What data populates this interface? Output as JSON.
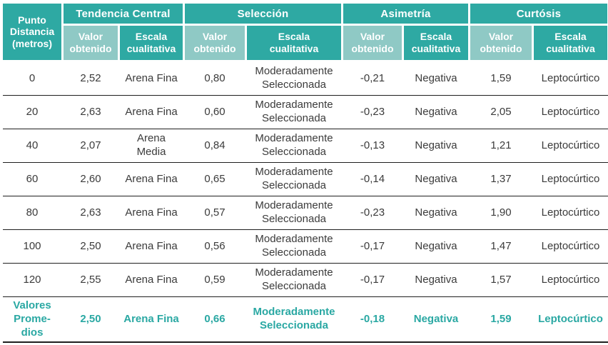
{
  "table": {
    "corner_header": "Punto\nDistancia\n(metros)",
    "groups": [
      {
        "label": "Tendencia Central",
        "sub": [
          "Valor\nobtenido",
          "Escala\ncualitativa"
        ]
      },
      {
        "label": "Selección",
        "sub": [
          "Valor\nobtenido",
          "Escala\ncualitativa"
        ]
      },
      {
        "label": "Asimetría",
        "sub": [
          "Valor\nobtenido",
          "Escala\ncualitativa"
        ]
      },
      {
        "label": "Curtósis",
        "sub": [
          "Valor\nobtenido",
          "Escala\ncualitativa"
        ]
      }
    ],
    "rows": [
      {
        "cells": [
          "0",
          "2,52",
          "Arena Fina",
          "0,80",
          "Moderadamente\nSeleccionada",
          "-0,21",
          "Negativa",
          "1,59",
          "Leptocúrtico"
        ]
      },
      {
        "cells": [
          "20",
          "2,63",
          "Arena Fina",
          "0,60",
          "Moderadamente\nSeleccionada",
          "-0,23",
          "Negativa",
          "2,05",
          "Leptocúrtico"
        ]
      },
      {
        "cells": [
          "40",
          "2,07",
          "Arena\nMedia",
          "0,84",
          "Moderadamente\nSeleccionada",
          "-0,13",
          "Negativa",
          "1,21",
          "Leptocúrtico"
        ]
      },
      {
        "cells": [
          "60",
          "2,60",
          "Arena Fina",
          "0,65",
          "Moderadamente\nSeleccionada",
          "-0,14",
          "Negativa",
          "1,37",
          "Leptocúrtico"
        ]
      },
      {
        "cells": [
          "80",
          "2,63",
          "Arena Fina",
          "0,57",
          "Moderadamente\nSeleccionada",
          "-0,23",
          "Negativa",
          "1,90",
          "Leptocúrtico"
        ]
      },
      {
        "cells": [
          "100",
          "2,50",
          "Arena Fina",
          "0,56",
          "Moderadamente\nSeleccionada",
          "-0,17",
          "Negativa",
          "1,47",
          "Leptocúrtico"
        ]
      },
      {
        "cells": [
          "120",
          "2,55",
          "Arena Fina",
          "0,59",
          "Moderadamente\nSeleccionada",
          "-0,17",
          "Negativa",
          "1,57",
          "Leptocúrtico"
        ]
      },
      {
        "cells": [
          "Valores\nProme-\ndios",
          "2,50",
          "Arena Fina",
          "0,66",
          "Moderadamente\nSeleccionada",
          "-0,18",
          "Negativa",
          "1,59",
          "Leptocúrtico"
        ],
        "emphasis": true
      }
    ]
  },
  "colors": {
    "header_dark_teal": "#2ea9a3",
    "header_light_teal": "#8fc9c5",
    "summary_text_teal": "#2aa8a3",
    "body_text": "#3b3b3b",
    "row_line": "#1f1f1f"
  }
}
